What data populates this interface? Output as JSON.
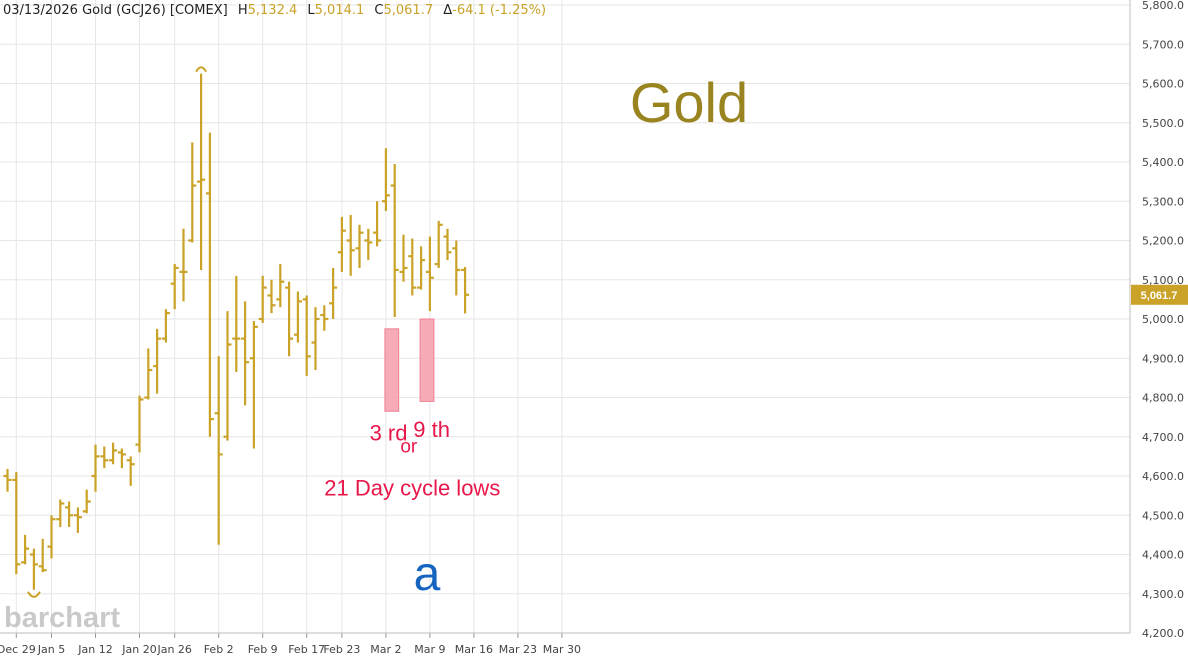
{
  "header": {
    "date": "03/13/2026",
    "symbol": "Gold (GCJ26) [COMEX]",
    "high_label": "H",
    "high": "5,132.4",
    "low_label": "L",
    "low": "5,014.1",
    "close_label": "C",
    "close": "5,061.7",
    "change_label": "Δ",
    "change": "-64.1 (-1.25%)"
  },
  "watermark": "barchart",
  "colors": {
    "bar": "#c9a227",
    "title": "#9a8420",
    "wave_label": "#1565c0",
    "annotation": "#e8174a",
    "highlight": "#f7a6b3",
    "last_price_badge": "#c9a227"
  },
  "chart_data": {
    "type": "ohlc",
    "title": "Gold",
    "wave_label": "a",
    "last_price": "5,061.7",
    "ylim": [
      4200,
      5800
    ],
    "y_ticks": [
      "4,200.0",
      "4,300.0",
      "4,400.0",
      "4,500.0",
      "4,600.0",
      "4,700.0",
      "4,800.0",
      "4,900.0",
      "5,000.0",
      "5,100.0",
      "5,200.0",
      "5,300.0",
      "5,400.0",
      "5,500.0",
      "5,600.0",
      "5,700.0",
      "5,800.0"
    ],
    "x_ticks": [
      {
        "label": "Dec 29",
        "index": 1
      },
      {
        "label": "Jan 5",
        "index": 5
      },
      {
        "label": "Jan 12",
        "index": 10
      },
      {
        "label": "Jan 20",
        "index": 15
      },
      {
        "label": "Jan 26",
        "index": 19
      },
      {
        "label": "Feb 2",
        "index": 24
      },
      {
        "label": "Feb 9",
        "index": 29
      },
      {
        "label": "Feb 17",
        "index": 34
      },
      {
        "label": "Feb 23",
        "index": 38
      },
      {
        "label": "Mar 2",
        "index": 43
      },
      {
        "label": "Mar 9",
        "index": 48
      },
      {
        "label": "Mar 16",
        "index": 53
      },
      {
        "label": "Mar 23",
        "index": 58
      },
      {
        "label": "Mar 30",
        "index": 63
      }
    ],
    "bars": [
      {
        "date": "Dec 26",
        "o": 4600,
        "h": 4618,
        "l": 4560,
        "c": 4590
      },
      {
        "date": "Dec 29",
        "o": 4590,
        "h": 4610,
        "l": 4350,
        "c": 4375
      },
      {
        "date": "Dec 30",
        "o": 4380,
        "h": 4450,
        "l": 4375,
        "c": 4415
      },
      {
        "date": "Dec 31",
        "o": 4400,
        "h": 4415,
        "l": 4310,
        "c": 4375
      },
      {
        "date": "Jan 2",
        "o": 4370,
        "h": 4440,
        "l": 4355,
        "c": 4360
      },
      {
        "date": "Jan 5",
        "o": 4420,
        "h": 4500,
        "l": 4390,
        "c": 4490
      },
      {
        "date": "Jan 6",
        "o": 4490,
        "h": 4540,
        "l": 4470,
        "c": 4530
      },
      {
        "date": "Jan 7",
        "o": 4520,
        "h": 4535,
        "l": 4470,
        "c": 4500
      },
      {
        "date": "Jan 8",
        "o": 4500,
        "h": 4520,
        "l": 4455,
        "c": 4495
      },
      {
        "date": "Jan 9",
        "o": 4510,
        "h": 4565,
        "l": 4505,
        "c": 4535
      },
      {
        "date": "Jan 12",
        "o": 4600,
        "h": 4680,
        "l": 4560,
        "c": 4650
      },
      {
        "date": "Jan 13",
        "o": 4650,
        "h": 4675,
        "l": 4620,
        "c": 4640
      },
      {
        "date": "Jan 14",
        "o": 4640,
        "h": 4685,
        "l": 4630,
        "c": 4665
      },
      {
        "date": "Jan 15",
        "o": 4660,
        "h": 4670,
        "l": 4620,
        "c": 4655
      },
      {
        "date": "Jan 16",
        "o": 4640,
        "h": 4650,
        "l": 4575,
        "c": 4630
      },
      {
        "date": "Jan 20",
        "o": 4680,
        "h": 4805,
        "l": 4660,
        "c": 4795
      },
      {
        "date": "Jan 21",
        "o": 4800,
        "h": 4925,
        "l": 4795,
        "c": 4870
      },
      {
        "date": "Jan 22",
        "o": 4880,
        "h": 4975,
        "l": 4810,
        "c": 4950
      },
      {
        "date": "Jan 23",
        "o": 4950,
        "h": 5025,
        "l": 4940,
        "c": 5015
      },
      {
        "date": "Jan 26",
        "o": 5090,
        "h": 5140,
        "l": 5025,
        "c": 5130
      },
      {
        "date": "Jan 27",
        "o": 5120,
        "h": 5230,
        "l": 5045,
        "c": 5120
      },
      {
        "date": "Jan 28",
        "o": 5200,
        "h": 5450,
        "l": 5195,
        "c": 5340
      },
      {
        "date": "Jan 29",
        "o": 5350,
        "h": 5625,
        "l": 5125,
        "c": 5355
      },
      {
        "date": "Jan 30",
        "o": 5320,
        "h": 5475,
        "l": 4700,
        "c": 4745
      },
      {
        "date": "Feb 2",
        "o": 4760,
        "h": 4905,
        "l": 4425,
        "c": 4655
      },
      {
        "date": "Feb 3",
        "o": 4700,
        "h": 5020,
        "l": 4690,
        "c": 4935
      },
      {
        "date": "Feb 4",
        "o": 4950,
        "h": 5110,
        "l": 4865,
        "c": 4950
      },
      {
        "date": "Feb 5",
        "o": 4950,
        "h": 5045,
        "l": 4780,
        "c": 4890
      },
      {
        "date": "Feb 6",
        "o": 4900,
        "h": 4995,
        "l": 4670,
        "c": 4980
      },
      {
        "date": "Feb 9",
        "o": 5000,
        "h": 5110,
        "l": 4990,
        "c": 5080
      },
      {
        "date": "Feb 10",
        "o": 5060,
        "h": 5100,
        "l": 5015,
        "c": 5035
      },
      {
        "date": "Feb 11",
        "o": 5050,
        "h": 5140,
        "l": 5030,
        "c": 5095
      },
      {
        "date": "Feb 12",
        "o": 5080,
        "h": 5095,
        "l": 4905,
        "c": 4950
      },
      {
        "date": "Feb 13",
        "o": 4960,
        "h": 5070,
        "l": 4940,
        "c": 5045
      },
      {
        "date": "Feb 17",
        "o": 5050,
        "h": 5060,
        "l": 4855,
        "c": 4905
      },
      {
        "date": "Feb 18",
        "o": 4940,
        "h": 5030,
        "l": 4870,
        "c": 5000
      },
      {
        "date": "Feb 19",
        "o": 5010,
        "h": 5035,
        "l": 4970,
        "c": 5000
      },
      {
        "date": "Feb 20",
        "o": 5040,
        "h": 5130,
        "l": 5000,
        "c": 5080
      },
      {
        "date": "Feb 23",
        "o": 5170,
        "h": 5260,
        "l": 5120,
        "c": 5225
      },
      {
        "date": "Feb 24",
        "o": 5200,
        "h": 5265,
        "l": 5110,
        "c": 5175
      },
      {
        "date": "Feb 25",
        "o": 5180,
        "h": 5240,
        "l": 5130,
        "c": 5220
      },
      {
        "date": "Feb 26",
        "o": 5200,
        "h": 5230,
        "l": 5150,
        "c": 5195
      },
      {
        "date": "Feb 27",
        "o": 5220,
        "h": 5300,
        "l": 5185,
        "c": 5200
      },
      {
        "date": "Mar 2",
        "o": 5300,
        "h": 5435,
        "l": 5275,
        "c": 5315
      },
      {
        "date": "Mar 3",
        "o": 5340,
        "h": 5395,
        "l": 5005,
        "c": 5125
      },
      {
        "date": "Mar 4",
        "o": 5120,
        "h": 5215,
        "l": 5095,
        "c": 5130
      },
      {
        "date": "Mar 5",
        "o": 5160,
        "h": 5205,
        "l": 5060,
        "c": 5080
      },
      {
        "date": "Mar 6",
        "o": 5080,
        "h": 5185,
        "l": 5075,
        "c": 5150
      },
      {
        "date": "Mar 9",
        "o": 5120,
        "h": 5210,
        "l": 5020,
        "c": 5105
      },
      {
        "date": "Mar 10",
        "o": 5140,
        "h": 5250,
        "l": 5130,
        "c": 5240
      },
      {
        "date": "Mar 11",
        "o": 5210,
        "h": 5230,
        "l": 5150,
        "c": 5170
      },
      {
        "date": "Mar 12",
        "o": 5180,
        "h": 5200,
        "l": 5060,
        "c": 5125
      },
      {
        "date": "Mar 13",
        "o": 5125,
        "h": 5132.4,
        "l": 5014.1,
        "c": 5061.7
      }
    ],
    "highlight_boxes": [
      {
        "start_index": 43,
        "end_index": 44,
        "y_low": 4765,
        "y_high": 4975
      },
      {
        "start_index": 47,
        "end_index": 48,
        "y_low": 4790,
        "y_high": 5000
      }
    ],
    "annotations": [
      {
        "text": "3 rd",
        "index": 43.3,
        "y": 4690
      },
      {
        "text": "or",
        "index": 45.6,
        "y": 4660
      },
      {
        "text": "9 th",
        "index": 48.2,
        "y": 4700
      },
      {
        "text": "21 Day cycle lows",
        "index": 46,
        "y": 4550
      }
    ],
    "cycle_markers": [
      {
        "type": "top",
        "index": 22,
        "y": 5625
      },
      {
        "type": "bottom",
        "index": 3,
        "y": 4310
      }
    ],
    "grid": true
  }
}
